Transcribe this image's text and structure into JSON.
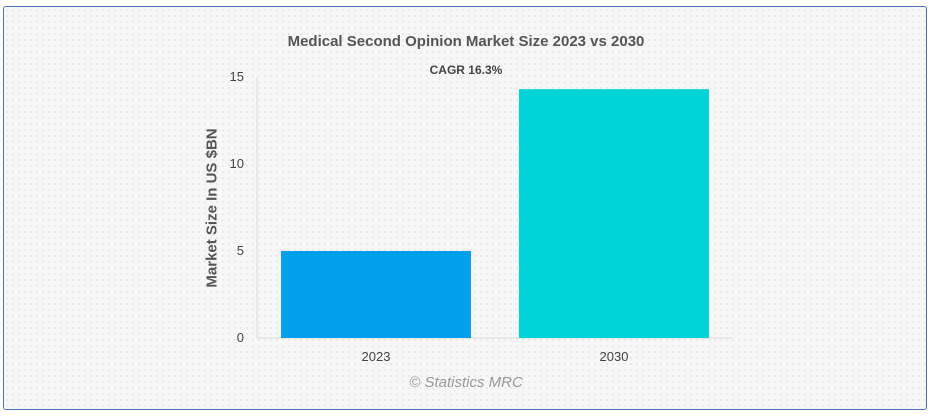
{
  "chart_data": {
    "type": "bar",
    "title": "Medical Second Opinion Market Size 2023 vs 2030",
    "subtitle": "CAGR 16.3%",
    "xlabel": "",
    "ylabel": "Market Size In US $BN",
    "categories": [
      "2023",
      "2030"
    ],
    "values": [
      5.0,
      14.3
    ],
    "ylim": [
      0,
      15
    ],
    "yticks": [
      0,
      5,
      10,
      15
    ],
    "grid": false,
    "legend": "none",
    "colors": [
      "#00a0ed",
      "#00d4d6"
    ]
  },
  "credit": "© Statistics MRC",
  "colors": {
    "frame_border": "#4a73b8",
    "background": "#f7f7f7"
  }
}
